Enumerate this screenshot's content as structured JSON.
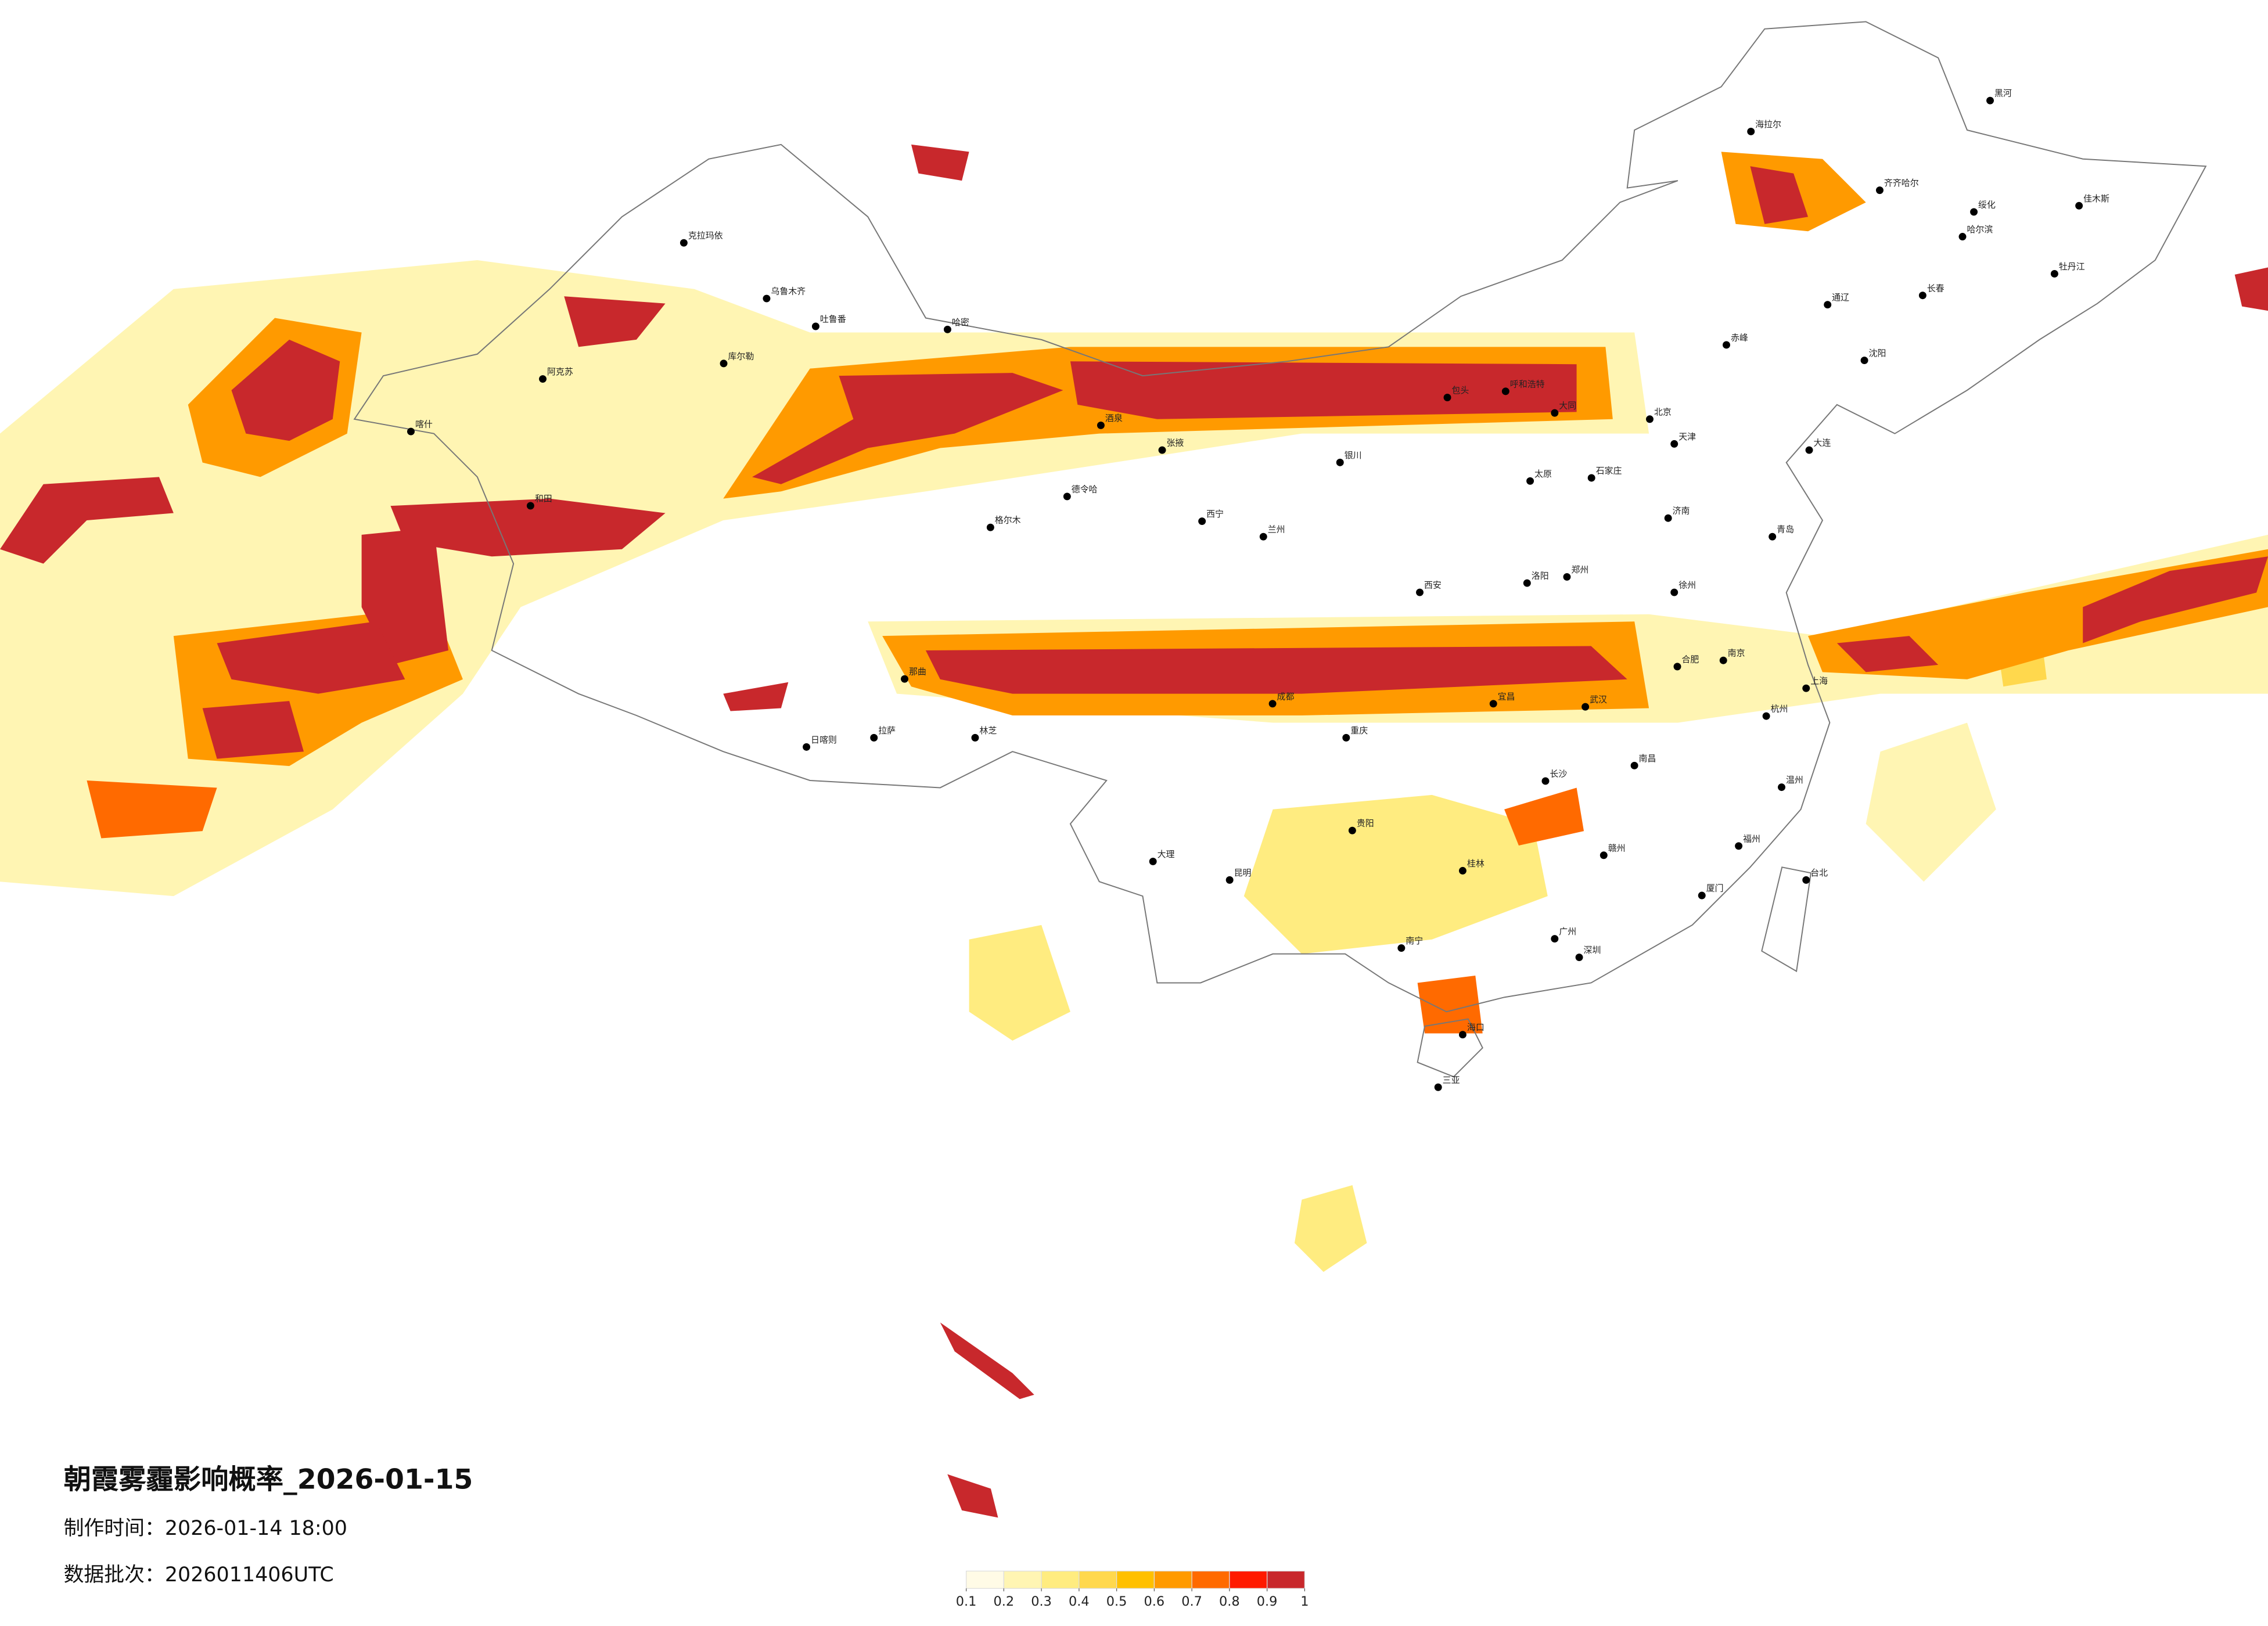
{
  "title": "朝霞雾霾影响概率_2026-01-15",
  "made_time": "制作时间：2026-01-14 18:00",
  "batch": "数据批次：2026011406UTC",
  "legend": {
    "ticks": [
      0.1,
      0.2,
      0.3,
      0.4,
      0.5,
      0.6,
      0.7,
      0.8,
      0.9,
      1
    ],
    "colors": [
      "#fffbe6",
      "#fff5b3",
      "#ffec80",
      "#ffd84d",
      "#ffc000",
      "#ff9a00",
      "#ff6a00",
      "#ff1a00",
      "#c8282c"
    ]
  },
  "cities": [
    {
      "name": "北京",
      "lon": 116.4,
      "lat": 39.9
    },
    {
      "name": "天津",
      "lon": 117.2,
      "lat": 39.1
    },
    {
      "name": "石家庄",
      "lon": 114.5,
      "lat": 38.0
    },
    {
      "name": "太原",
      "lon": 112.5,
      "lat": 37.9
    },
    {
      "name": "呼和浩特",
      "lon": 111.7,
      "lat": 40.8
    },
    {
      "name": "沈阳",
      "lon": 123.4,
      "lat": 41.8
    },
    {
      "name": "长春",
      "lon": 125.3,
      "lat": 43.9
    },
    {
      "name": "哈尔滨",
      "lon": 126.6,
      "lat": 45.8
    },
    {
      "name": "上海",
      "lon": 121.5,
      "lat": 31.2
    },
    {
      "name": "南京",
      "lon": 118.8,
      "lat": 32.1
    },
    {
      "name": "杭州",
      "lon": 120.2,
      "lat": 30.3
    },
    {
      "name": "合肥",
      "lon": 117.3,
      "lat": 31.9
    },
    {
      "name": "福州",
      "lon": 119.3,
      "lat": 26.1
    },
    {
      "name": "南昌",
      "lon": 115.9,
      "lat": 28.7
    },
    {
      "name": "济南",
      "lon": 117.0,
      "lat": 36.7
    },
    {
      "name": "郑州",
      "lon": 113.7,
      "lat": 34.8
    },
    {
      "name": "武汉",
      "lon": 114.3,
      "lat": 30.6
    },
    {
      "name": "长沙",
      "lon": 113.0,
      "lat": 28.2
    },
    {
      "name": "广州",
      "lon": 113.3,
      "lat": 23.1
    },
    {
      "name": "南宁",
      "lon": 108.3,
      "lat": 22.8
    },
    {
      "name": "海口",
      "lon": 110.3,
      "lat": 20.0
    },
    {
      "name": "重庆",
      "lon": 106.5,
      "lat": 29.6
    },
    {
      "name": "成都",
      "lon": 104.1,
      "lat": 30.7
    },
    {
      "name": "贵阳",
      "lon": 106.7,
      "lat": 26.6
    },
    {
      "name": "昆明",
      "lon": 102.7,
      "lat": 25.0
    },
    {
      "name": "拉萨",
      "lon": 91.1,
      "lat": 29.6
    },
    {
      "name": "西安",
      "lon": 108.9,
      "lat": 34.3
    },
    {
      "name": "兰州",
      "lon": 103.8,
      "lat": 36.1
    },
    {
      "name": "西宁",
      "lon": 101.8,
      "lat": 36.6
    },
    {
      "name": "银川",
      "lon": 106.3,
      "lat": 38.5
    },
    {
      "name": "乌鲁木齐",
      "lon": 87.6,
      "lat": 43.8
    },
    {
      "name": "喀什",
      "lon": 76.0,
      "lat": 39.5
    },
    {
      "name": "克拉玛依",
      "lon": 84.9,
      "lat": 45.6
    },
    {
      "name": "库尔勒",
      "lon": 86.2,
      "lat": 41.7
    },
    {
      "name": "哈密",
      "lon": 93.5,
      "lat": 42.8
    },
    {
      "name": "齐齐哈尔",
      "lon": 123.9,
      "lat": 47.3
    },
    {
      "name": "海拉尔",
      "lon": 119.7,
      "lat": 49.2
    },
    {
      "name": "佳木斯",
      "lon": 130.4,
      "lat": 46.8
    },
    {
      "name": "牡丹江",
      "lon": 129.6,
      "lat": 44.6
    },
    {
      "name": "黑河",
      "lon": 127.5,
      "lat": 50.2
    },
    {
      "name": "大连",
      "lon": 121.6,
      "lat": 38.9
    },
    {
      "name": "青岛",
      "lon": 120.4,
      "lat": 36.1
    },
    {
      "name": "厦门",
      "lon": 118.1,
      "lat": 24.5
    },
    {
      "name": "深圳",
      "lon": 114.1,
      "lat": 22.5
    },
    {
      "name": "三亚",
      "lon": 109.5,
      "lat": 18.3
    },
    {
      "name": "台北",
      "lon": 121.5,
      "lat": 25.0
    },
    {
      "name": "包头",
      "lon": 109.8,
      "lat": 40.6
    },
    {
      "name": "大同",
      "lon": 113.3,
      "lat": 40.1
    },
    {
      "name": "洛阳",
      "lon": 112.4,
      "lat": 34.6
    },
    {
      "name": "宜昌",
      "lon": 111.3,
      "lat": 30.7
    },
    {
      "name": "桂林",
      "lon": 110.3,
      "lat": 25.3
    },
    {
      "name": "赣州",
      "lon": 114.9,
      "lat": 25.8
    },
    {
      "name": "温州",
      "lon": 120.7,
      "lat": 28.0
    },
    {
      "name": "徐州",
      "lon": 117.2,
      "lat": 34.3
    },
    {
      "name": "日喀则",
      "lon": 88.9,
      "lat": 29.3
    },
    {
      "name": "格尔木",
      "lon": 94.9,
      "lat": 36.4
    },
    {
      "name": "德令哈",
      "lon": 97.4,
      "lat": 37.4
    },
    {
      "name": "酒泉",
      "lon": 98.5,
      "lat": 39.7
    },
    {
      "name": "张掖",
      "lon": 100.5,
      "lat": 38.9
    },
    {
      "name": "吐鲁番",
      "lon": 89.2,
      "lat": 42.9
    },
    {
      "name": "阿克苏",
      "lon": 80.3,
      "lat": 41.2
    },
    {
      "name": "和田",
      "lon": 79.9,
      "lat": 37.1
    },
    {
      "name": "林芝",
      "lon": 94.4,
      "lat": 29.6
    },
    {
      "name": "那曲",
      "lon": 92.1,
      "lat": 31.5
    },
    {
      "name": "大理",
      "lon": 100.2,
      "lat": 25.6
    },
    {
      "name": "通辽",
      "lon": 122.2,
      "lat": 43.6
    },
    {
      "name": "赤峰",
      "lon": 118.9,
      "lat": 42.3
    },
    {
      "name": "绥化",
      "lon": 126.97,
      "lat": 46.6
    }
  ]
}
